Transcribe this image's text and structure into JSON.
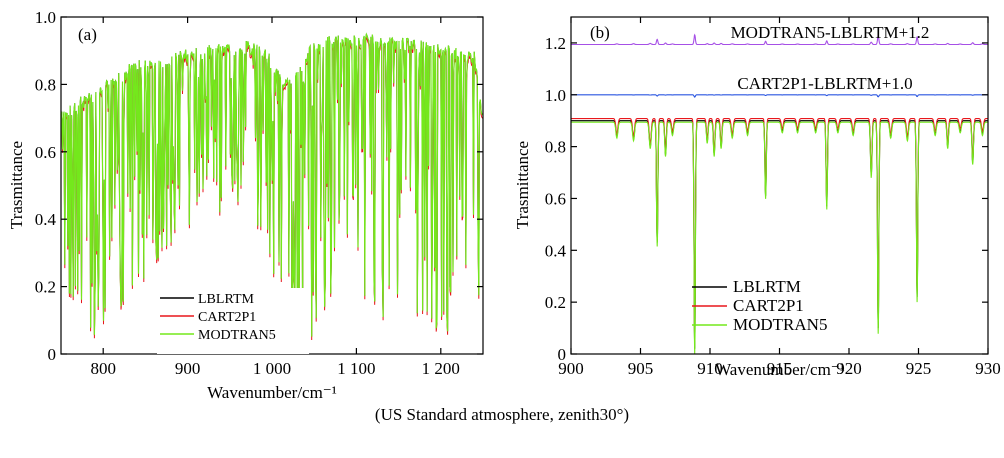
{
  "caption": "(US Standard atmosphere, zenith30°)",
  "chart_data": [
    {
      "type": "line",
      "panel_label": "(a)",
      "xlabel": "Wavenumber/cm⁻¹",
      "ylabel": "Trasmittance",
      "xlim": [
        750,
        1250
      ],
      "ylim": [
        0,
        1.0
      ],
      "x_ticks": [
        800,
        900,
        1000,
        1100,
        1200
      ],
      "x_tick_labels": [
        "800",
        "900",
        "1 000",
        "1 100",
        "1 200"
      ],
      "y_ticks": [
        0,
        0.2,
        0.4,
        0.6,
        0.8,
        1.0
      ],
      "y_tick_labels": [
        "0",
        "0.2",
        "0.4",
        "0.6",
        "0.8",
        "1.0"
      ],
      "legend_position": "lower-center",
      "envelope_x": [
        750,
        770,
        790,
        810,
        830,
        850,
        870,
        890,
        910,
        930,
        950,
        970,
        990,
        1000,
        1010,
        1020,
        1030,
        1040,
        1050,
        1060,
        1070,
        1080,
        1090,
        1100,
        1110,
        1120,
        1140,
        1160,
        1180,
        1200,
        1220,
        1240,
        1250
      ],
      "envelope_upper": [
        0.72,
        0.76,
        0.79,
        0.82,
        0.86,
        0.88,
        0.89,
        0.9,
        0.91,
        0.92,
        0.92,
        0.93,
        0.92,
        0.88,
        0.84,
        0.82,
        0.86,
        0.9,
        0.93,
        0.94,
        0.95,
        0.95,
        0.95,
        0.95,
        0.95,
        0.95,
        0.94,
        0.94,
        0.93,
        0.92,
        0.91,
        0.9,
        0.7
      ],
      "envelope_lower": [
        0.2,
        0.15,
        0.05,
        0.1,
        0.15,
        0.2,
        0.3,
        0.35,
        0.4,
        0.4,
        0.45,
        0.4,
        0.35,
        0.25,
        0.15,
        0.08,
        0.05,
        0.05,
        0.03,
        0.05,
        0.1,
        0.15,
        0.2,
        0.2,
        0.15,
        0.1,
        0.1,
        0.15,
        0.1,
        0.05,
        0.05,
        0.1,
        0.2
      ],
      "series": [
        {
          "name": "LBLRTM",
          "color": "#000000"
        },
        {
          "name": "CART2P1",
          "color": "#e8171c"
        },
        {
          "name": "MODTRAN5",
          "color": "#74e81c"
        }
      ]
    },
    {
      "type": "line",
      "panel_label": "(b)",
      "xlabel": "Wavenumber/cm⁻¹",
      "ylabel": "Trasmittance",
      "xlim": [
        900,
        930
      ],
      "ylim": [
        0,
        1.3
      ],
      "x_ticks": [
        900,
        905,
        910,
        915,
        920,
        925,
        930
      ],
      "x_tick_labels": [
        "900",
        "905",
        "910",
        "915",
        "920",
        "925",
        "930"
      ],
      "y_ticks": [
        0,
        0.2,
        0.4,
        0.6,
        0.8,
        1.0,
        1.2
      ],
      "y_tick_labels": [
        "0",
        "0.2",
        "0.4",
        "0.6",
        "0.8",
        "1.0",
        "1.2"
      ],
      "legend_position": "lower-center",
      "baseline": 0.9,
      "absorption_lines": [
        {
          "x": 903.3,
          "depth": 0.06,
          "width": 0.1
        },
        {
          "x": 904.5,
          "depth": 0.07,
          "width": 0.1
        },
        {
          "x": 905.7,
          "depth": 0.1,
          "width": 0.1
        },
        {
          "x": 906.2,
          "depth": 0.47,
          "width": 0.07
        },
        {
          "x": 906.8,
          "depth": 0.13,
          "width": 0.08
        },
        {
          "x": 907.3,
          "depth": 0.05,
          "width": 0.1
        },
        {
          "x": 908.9,
          "depth": 0.88,
          "width": 0.07
        },
        {
          "x": 909.8,
          "depth": 0.08,
          "width": 0.08
        },
        {
          "x": 910.3,
          "depth": 0.13,
          "width": 0.08
        },
        {
          "x": 910.8,
          "depth": 0.1,
          "width": 0.08
        },
        {
          "x": 911.6,
          "depth": 0.06,
          "width": 0.1
        },
        {
          "x": 912.7,
          "depth": 0.05,
          "width": 0.1
        },
        {
          "x": 914.0,
          "depth": 0.29,
          "width": 0.07
        },
        {
          "x": 915.2,
          "depth": 0.04,
          "width": 0.1
        },
        {
          "x": 916.3,
          "depth": 0.04,
          "width": 0.1
        },
        {
          "x": 917.6,
          "depth": 0.04,
          "width": 0.1
        },
        {
          "x": 918.4,
          "depth": 0.33,
          "width": 0.07
        },
        {
          "x": 919.2,
          "depth": 0.04,
          "width": 0.1
        },
        {
          "x": 920.3,
          "depth": 0.05,
          "width": 0.1
        },
        {
          "x": 921.6,
          "depth": 0.21,
          "width": 0.08
        },
        {
          "x": 922.1,
          "depth": 0.8,
          "width": 0.07
        },
        {
          "x": 923.0,
          "depth": 0.06,
          "width": 0.1
        },
        {
          "x": 924.2,
          "depth": 0.07,
          "width": 0.1
        },
        {
          "x": 924.9,
          "depth": 0.68,
          "width": 0.07
        },
        {
          "x": 926.2,
          "depth": 0.05,
          "width": 0.1
        },
        {
          "x": 927.1,
          "depth": 0.1,
          "width": 0.08
        },
        {
          "x": 928.0,
          "depth": 0.04,
          "width": 0.1
        },
        {
          "x": 928.9,
          "depth": 0.16,
          "width": 0.08
        },
        {
          "x": 929.6,
          "depth": 0.05,
          "width": 0.1
        }
      ],
      "offset_series": [
        {
          "name": "MODTRAN5-LBLRTM+1.2",
          "offset": 1.2,
          "color": "#a650e6"
        },
        {
          "name": "CART2P1-LBLRTM+1.0",
          "offset": 1.0,
          "color": "#2a55e0"
        }
      ],
      "series": [
        {
          "name": "LBLRTM",
          "color": "#000000"
        },
        {
          "name": "CART2P1",
          "color": "#e8171c"
        },
        {
          "name": "MODTRAN5",
          "color": "#74e81c"
        }
      ]
    }
  ]
}
